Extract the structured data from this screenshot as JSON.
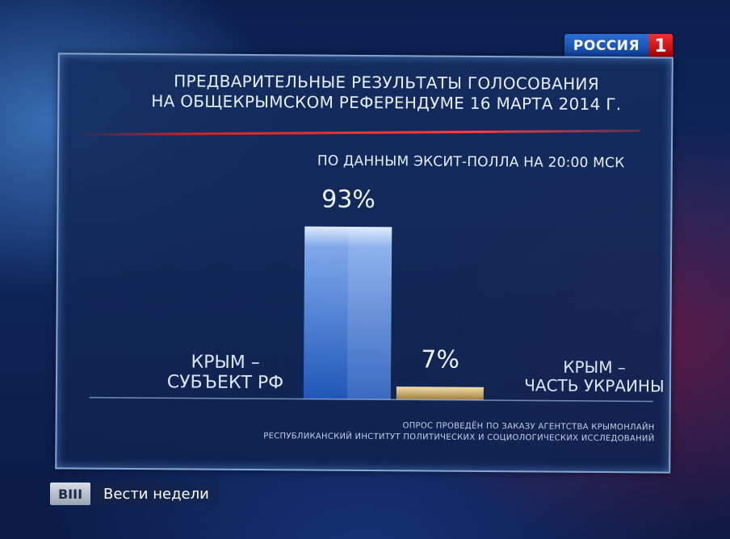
{
  "channel": {
    "name": "РОССИЯ",
    "number": "1"
  },
  "program": {
    "badge": "ВIII",
    "name": "Вести недели"
  },
  "chart_data": {
    "type": "bar",
    "title_lines": [
      "ПРЕДВАРИТЕЛЬНЫЕ РЕЗУЛЬТАТЫ ГОЛОСОВАНИЯ",
      "НА ОБЩЕКРЫМСКОМ РЕФЕРЕНДУМЕ 16 МАРТА 2014 г."
    ],
    "subtitle": "ПО ДАННЫМ ЭКСИТ-ПОЛЛА НА 20:00 МСК",
    "categories": [
      {
        "label_lines": [
          "КРЫМ –",
          "СУБЪЕКТ РФ"
        ],
        "value": 93,
        "value_label": "93%",
        "color": "#3f7ce0"
      },
      {
        "label_lines": [
          "КРЫМ –",
          "ЧАСТЬ УКРАИНЫ"
        ],
        "value": 7,
        "value_label": "7%",
        "color": "#c9a560"
      }
    ],
    "unit": "%",
    "ylim": [
      0,
      100
    ],
    "grid": false,
    "footnote_lines": [
      "ОПРОС ПРОВЕДЁН ПО ЗАКАЗУ АГЕНТСТВА КРЫМОНЛАЙН",
      "РЕСПУБЛИКАНСКИЙ ИНСТИТУТ ПОЛИТИЧЕСКИХ И СОЦИОЛОГИЧЕСКИХ ИССЛЕДОВАНИЙ"
    ]
  }
}
